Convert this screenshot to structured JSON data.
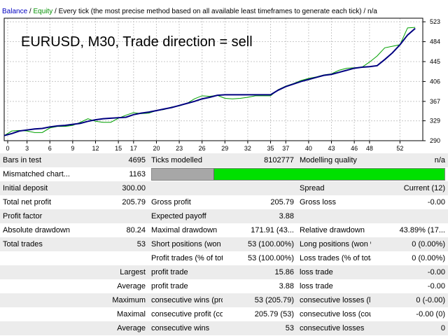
{
  "header": {
    "balance": "Balance",
    "sep1": " / ",
    "equity": "Equity",
    "sep2": " / ",
    "description": "Every tick (the most precise method based on all available least timeframes to generate each tick)",
    "sep3": " / ",
    "na": "n/a"
  },
  "chart_data": {
    "type": "line",
    "title": "EURUSD, M30, Trade direction = sell",
    "x_ticks": [
      "0",
      "3",
      "6",
      "9",
      "12",
      "15",
      "17",
      "20",
      "23",
      "26",
      "29",
      "32",
      "35",
      "37",
      "40",
      "43",
      "46",
      "48",
      "52"
    ],
    "y_ticks": [
      "523",
      "484",
      "445",
      "406",
      "367",
      "329",
      "290"
    ],
    "xlim": [
      0,
      55
    ],
    "ylim": [
      290,
      530
    ],
    "grid": true,
    "colors": {
      "balance": "#000080",
      "equity": "#00a000"
    },
    "series": [
      {
        "name": "Balance",
        "x": [
          0,
          1,
          2,
          3,
          4,
          5,
          6,
          7,
          8,
          9,
          10,
          11,
          12,
          13,
          14,
          15,
          16,
          17,
          18,
          19,
          20,
          21,
          22,
          23,
          24,
          25,
          26,
          27,
          28,
          29,
          30,
          31,
          32,
          33,
          34,
          35,
          36,
          37,
          38,
          39,
          40,
          41,
          42,
          43,
          44,
          45,
          46,
          47,
          48,
          49,
          50,
          51,
          52,
          53,
          54
        ],
        "y": [
          300,
          304,
          309,
          311,
          313,
          314,
          317,
          319,
          320,
          322,
          324,
          328,
          331,
          333,
          334,
          335,
          336,
          341,
          344,
          346,
          349,
          352,
          355,
          359,
          363,
          367,
          372,
          375,
          379,
          380,
          380,
          380,
          380,
          380,
          380,
          380,
          389,
          396,
          401,
          406,
          410,
          414,
          418,
          420,
          424,
          428,
          432,
          434,
          435,
          437,
          449,
          462,
          478,
          497,
          510
        ]
      },
      {
        "name": "Equity",
        "x": [
          0,
          1,
          2,
          3,
          4,
          5,
          6,
          7,
          8,
          9,
          10,
          11,
          12,
          13,
          14,
          15,
          16,
          17,
          18,
          19,
          20,
          21,
          22,
          23,
          24,
          25,
          26,
          27,
          28,
          29,
          30,
          31,
          32,
          33,
          34,
          35,
          36,
          37,
          38,
          39,
          40,
          41,
          42,
          43,
          44,
          45,
          46,
          47,
          48,
          49,
          50,
          51,
          52,
          53,
          54
        ],
        "y": [
          300,
          309,
          310,
          309,
          306,
          306,
          315,
          318,
          318,
          320,
          326,
          333,
          328,
          326,
          326,
          334,
          340,
          345,
          343,
          344,
          349,
          351,
          356,
          358,
          363,
          372,
          378,
          377,
          379,
          373,
          372,
          373,
          375,
          378,
          378,
          378,
          390,
          397,
          402,
          408,
          412,
          415,
          419,
          421,
          428,
          432,
          433,
          434,
          444,
          456,
          472,
          475,
          478,
          511,
          512
        ]
      }
    ]
  },
  "report": {
    "rows": [
      [
        "Bars in test",
        "4695",
        "Ticks modelled",
        "8102777",
        "Modelling quality",
        "n/a"
      ],
      [
        "Mismatched chart...",
        "1163"
      ],
      [
        "Initial deposit",
        "300.00",
        "",
        "",
        "Spread",
        "Current (12)"
      ],
      [
        "Total net profit",
        "205.79",
        "Gross profit",
        "205.79",
        "Gross loss",
        "-0.00"
      ],
      [
        "Profit factor",
        "",
        "Expected payoff",
        "3.88",
        "",
        ""
      ],
      [
        "Absolute drawdown",
        "80.24",
        "Maximal drawdown",
        "171.91 (43...",
        "Relative drawdown",
        "43.89% (17..."
      ],
      [
        "Total trades",
        "53",
        "Short positions (won %)",
        "53 (100.00%)",
        "Long positions (won %)",
        "0 (0.00%)"
      ],
      [
        "",
        "",
        "Profit trades (% of total)",
        "53 (100.00%)",
        "Loss trades (% of total)",
        "0 (0.00%)"
      ],
      [
        "",
        "Largest",
        "profit trade",
        "15.86",
        "loss trade",
        "-0.00"
      ],
      [
        "",
        "Average",
        "profit trade",
        "3.88",
        "loss trade",
        "-0.00"
      ],
      [
        "",
        "Maximum",
        "consecutive wins (prof...",
        "53 (205.79)",
        "consecutive losses (lo...",
        "0 (-0.00)"
      ],
      [
        "",
        "Maximal",
        "consecutive profit (cou...",
        "205.79 (53)",
        "consecutive loss (coun...",
        "-0.00 (0)"
      ],
      [
        "",
        "Average",
        "consecutive wins",
        "53",
        "consecutive losses",
        "0"
      ]
    ],
    "modelling_quality_bar": {
      "gray_fraction": 0.21
    }
  }
}
